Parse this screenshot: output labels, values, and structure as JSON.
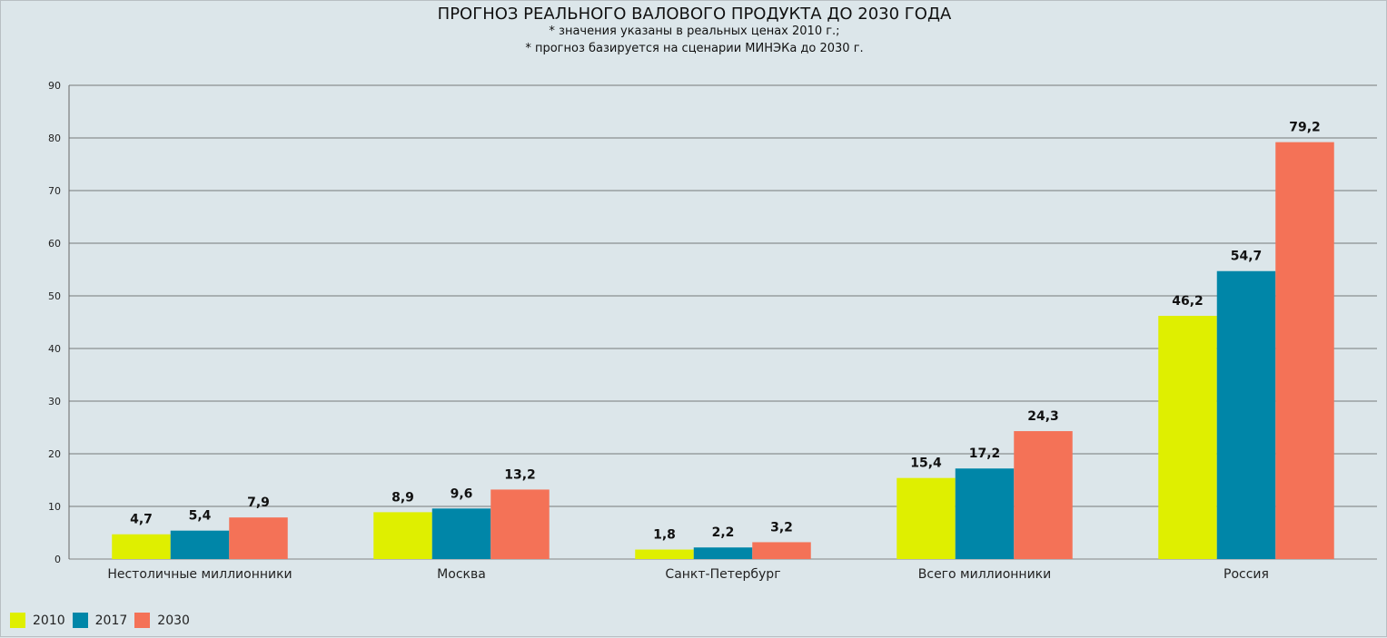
{
  "chart_data": {
    "type": "bar",
    "title": "ПРОГНОЗ РЕАЛЬНОГО ВАЛОВОГО ПРОДУКТА ДО 2030 ГОДА",
    "subtitles": [
      "* значения указаны в реальных ценах 2010 г.;",
      "* прогноз базируется на сценарии МИНЭКа до 2030 г."
    ],
    "categories": [
      "Нестоличные миллионники",
      "Москва",
      "Санкт-Петербург",
      "Всего миллионники",
      "Россия"
    ],
    "series": [
      {
        "name": "2010",
        "color": "#dfef00",
        "values": [
          4.7,
          8.9,
          1.8,
          15.4,
          46.2
        ],
        "labels": [
          "4,7",
          "8,9",
          "1,8",
          "15,4",
          "46,2"
        ]
      },
      {
        "name": "2017",
        "color": "#0086a8",
        "values": [
          5.4,
          9.6,
          2.2,
          17.2,
          54.7
        ],
        "labels": [
          "5,4",
          "9,6",
          "2,2",
          "17,2",
          "54,7"
        ]
      },
      {
        "name": "2030",
        "color": "#f47257",
        "values": [
          7.9,
          13.2,
          3.2,
          24.3,
          79.2
        ],
        "labels": [
          "7,9",
          "13,2",
          "3,2",
          "24,3",
          "79,2"
        ]
      }
    ],
    "yticks": [
      "0",
      "10",
      "20",
      "30",
      "40",
      "50",
      "60",
      "70",
      "80",
      "90"
    ],
    "ylim": [
      0,
      90
    ],
    "grid": true,
    "legend": "bottom-left"
  }
}
